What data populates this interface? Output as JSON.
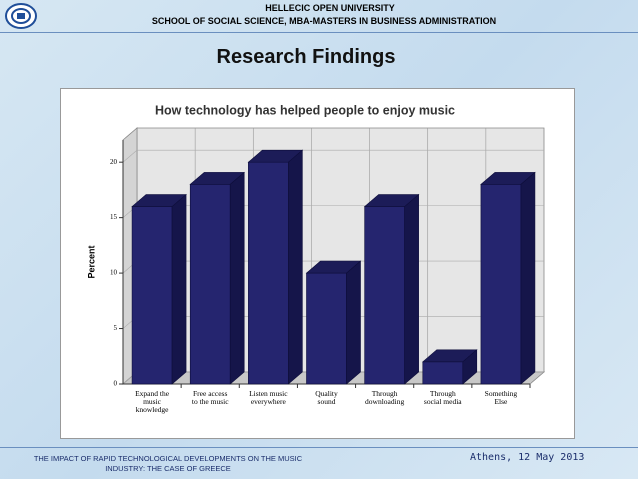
{
  "header": {
    "university": "HELLECIC OPEN UNIVERSITY",
    "school": "SCHOOL OF SOCIAL SCIENCE, MBA-MASTERS IN BUSINESS ADMINISTRATION",
    "title": "Research Findings"
  },
  "chart_data": {
    "type": "bar3d",
    "title": "How technology has helped people to enjoy music",
    "y_label": "Percent",
    "categories": [
      "Expand the\nmusic\nknowledge",
      "Free access\nto the music",
      "Listen music\neverywhere",
      "Quality\nsound",
      "Through\ndownloading",
      "Through\nsocial media",
      "Something\nElse"
    ],
    "values": [
      16,
      18,
      20,
      10,
      16,
      2,
      18
    ],
    "color": "#25256f",
    "ylim": [
      0,
      22
    ],
    "yticks": [
      0,
      5,
      10,
      15,
      20
    ],
    "grid": true
  },
  "footer": {
    "left": "THE IMPACT OF RAPID TECHNOLOGICAL DEVELOPMENTS ON THE MUSIC\nINDUSTRY: THE CASE OF GREECE",
    "right": "Athens, 12 May 2013"
  }
}
